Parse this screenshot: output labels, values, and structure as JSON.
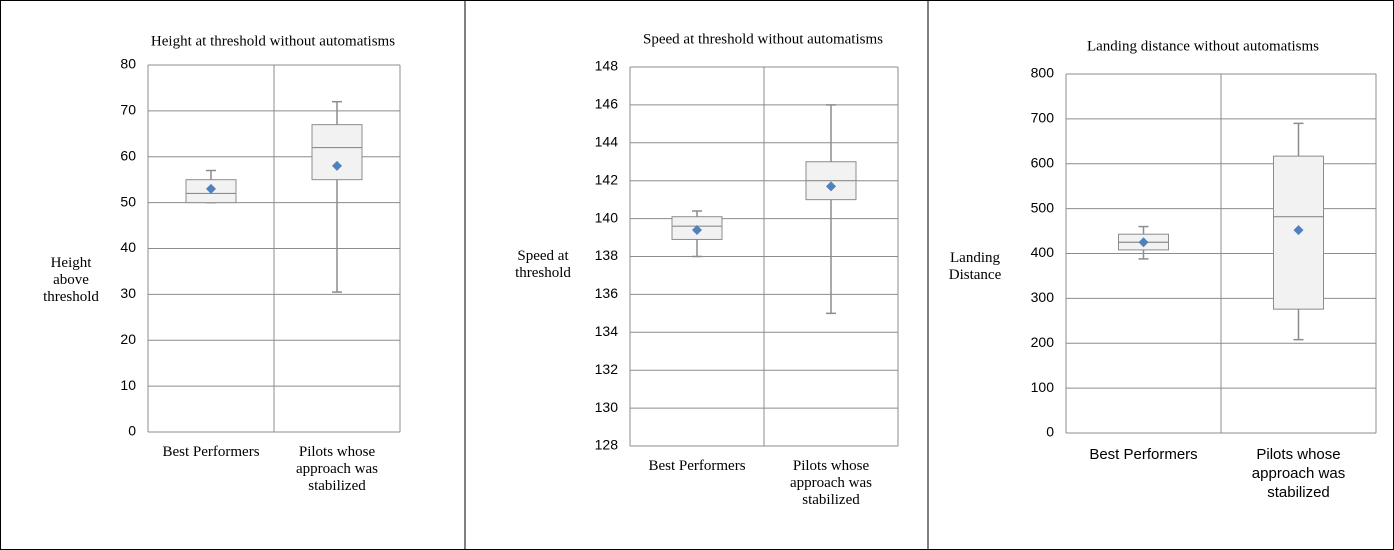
{
  "chart_data": [
    {
      "type": "box",
      "title": "Height at threshold without automatisms",
      "ylabel": "Height above threshold",
      "categories": [
        "Best Performers",
        "Pilots whose approach was stabilized"
      ],
      "box_color": "#f2f2f2",
      "mean_color": "#4f81bd",
      "boxes": [
        {
          "low": 50,
          "q1": 50,
          "median": 52,
          "q3": 55,
          "high": 57,
          "mean": 53
        },
        {
          "low": 30.5,
          "q1": 55,
          "median": 62,
          "q3": 67,
          "high": 72,
          "mean": 58
        }
      ],
      "ylim": [
        0,
        80
      ],
      "yticks": [
        0,
        10,
        20,
        30,
        40,
        50,
        60,
        70,
        80
      ],
      "grid": true
    },
    {
      "type": "box",
      "title": "Speed at threshold without automatisms",
      "ylabel": "Speed at threshold",
      "categories": [
        "Best Performers",
        "Pilots whose approach was stabilized"
      ],
      "box_color": "#f2f2f2",
      "mean_color": "#4f81bd",
      "boxes": [
        {
          "low": 138,
          "q1": 138.9,
          "median": 139.6,
          "q3": 140.1,
          "high": 140.4,
          "mean": 139.4
        },
        {
          "low": 135,
          "q1": 141,
          "median": 142,
          "q3": 143,
          "high": 146,
          "mean": 141.7
        }
      ],
      "ylim": [
        128,
        148
      ],
      "yticks": [
        128,
        130,
        132,
        134,
        136,
        138,
        140,
        142,
        144,
        146,
        148
      ],
      "grid": true
    },
    {
      "type": "box",
      "title": "Landing distance without automatisms",
      "ylabel": "Landing Distance",
      "categories": [
        "Best Performers",
        "Pilots whose approach was stabilized"
      ],
      "box_color": "#f2f2f2",
      "mean_color": "#4f81bd",
      "boxes": [
        {
          "low": 388,
          "q1": 408,
          "median": 425,
          "q3": 443,
          "high": 460,
          "mean": 425
        },
        {
          "low": 208,
          "q1": 276,
          "median": 482,
          "q3": 617,
          "high": 690,
          "mean": 452
        }
      ],
      "ylim": [
        0,
        800
      ],
      "yticks": [
        0,
        100,
        200,
        300,
        400,
        500,
        600,
        700,
        800
      ],
      "grid": true
    }
  ]
}
